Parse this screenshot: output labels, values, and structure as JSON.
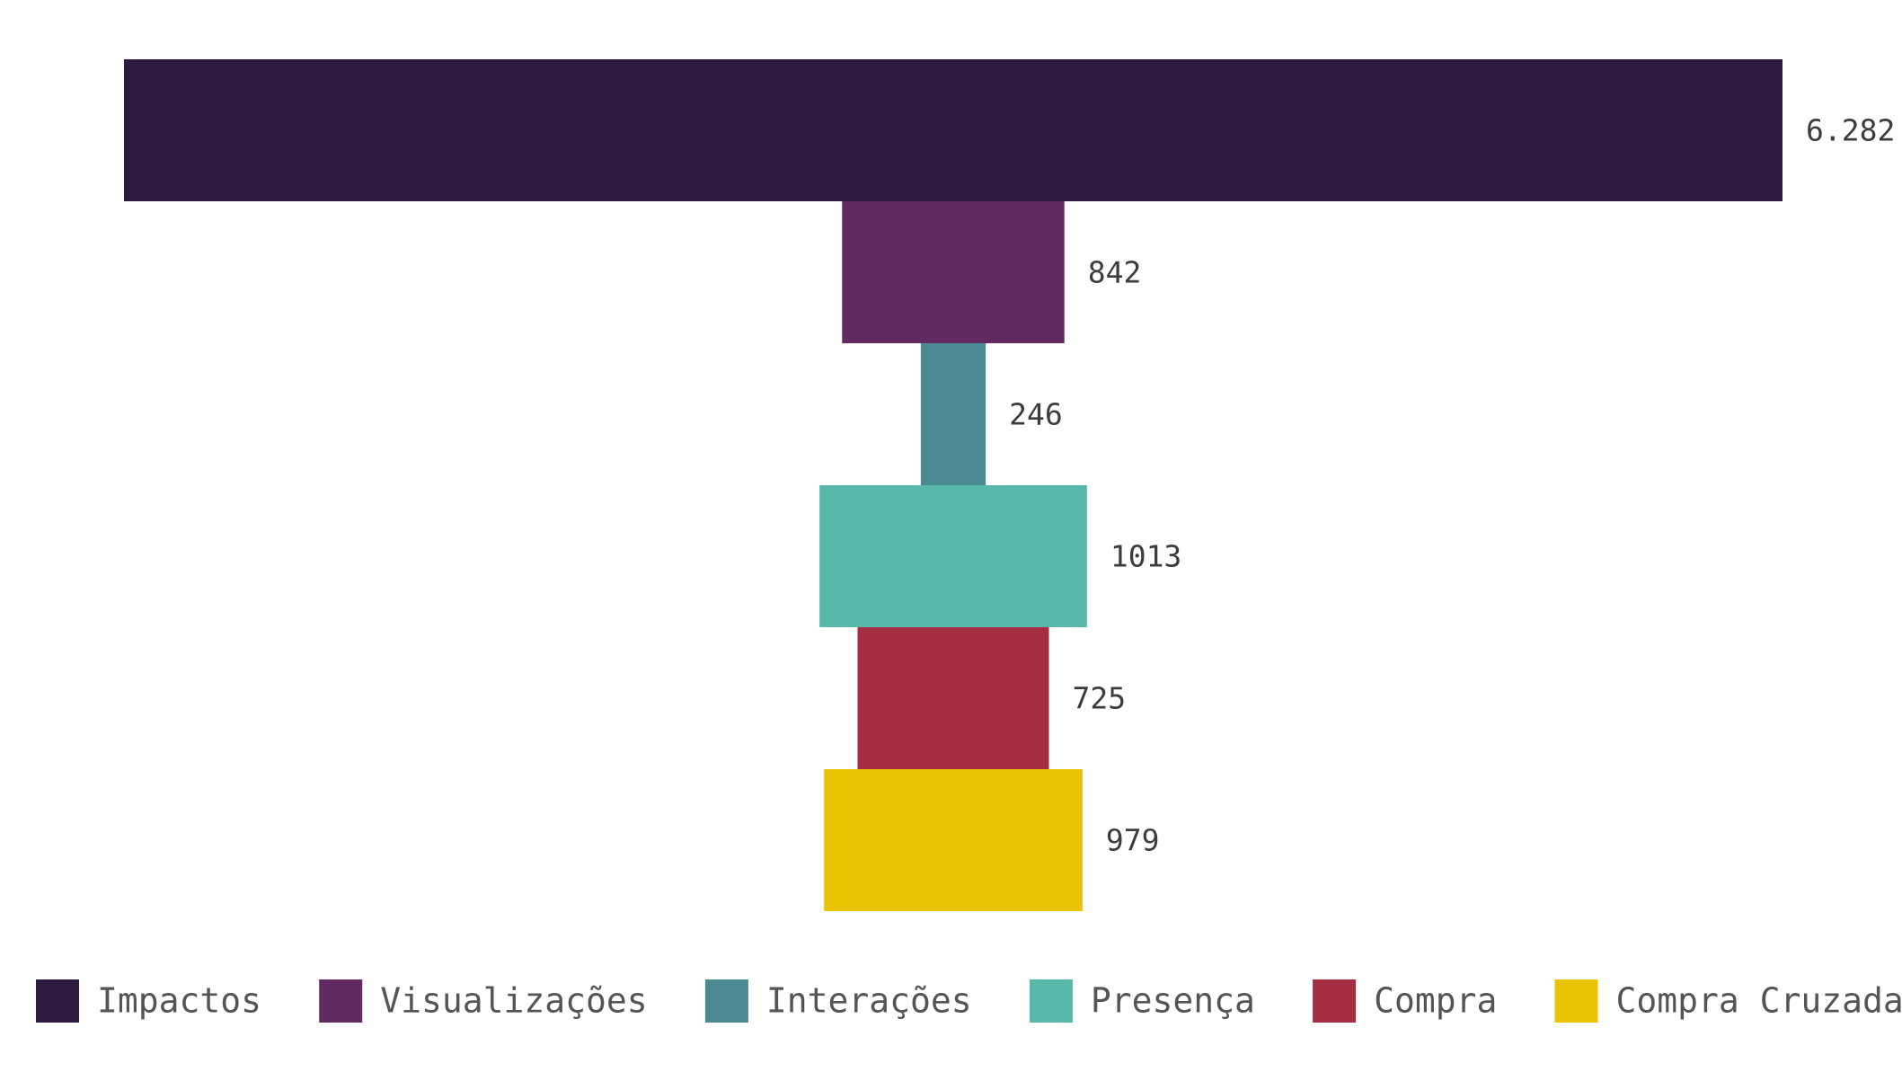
{
  "chart_data": {
    "type": "bar",
    "subtype": "funnel",
    "categories": [
      "Impactos",
      "Visualizações",
      "Interações",
      "Presença",
      "Compra",
      "Compra Cruzada"
    ],
    "values": [
      6282,
      842,
      246,
      1013,
      725,
      979
    ],
    "value_labels": [
      "6.282",
      "842",
      "246",
      "1013",
      "725",
      "979"
    ],
    "colors": [
      "#2f1a3f",
      "#612a62",
      "#4b8993",
      "#58b8a9",
      "#a62e42",
      "#e9c402"
    ],
    "title": "",
    "xlabel": "",
    "ylabel": "",
    "grid": false,
    "legend": "bottom"
  }
}
